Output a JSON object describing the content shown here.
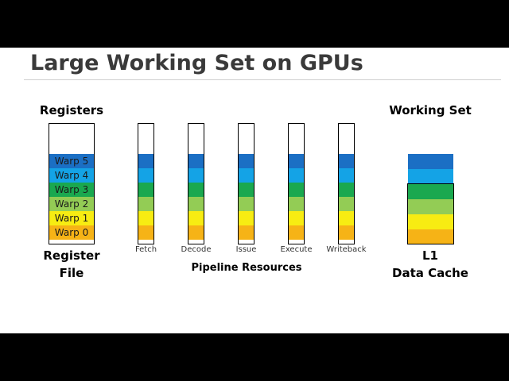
{
  "title": "Large Working Set on GPUs",
  "registers": {
    "heading": "Registers",
    "caption_line1": "Register",
    "caption_line2": "File",
    "warps": [
      "Warp 5",
      "Warp 4",
      "Warp 3",
      "Warp 2",
      "Warp 1",
      "Warp 0"
    ]
  },
  "colors": {
    "warp5": "#1b6fc4",
    "warp4": "#14a3e6",
    "warp3": "#1aa84f",
    "warp2": "#93cc55",
    "warp1": "#f7ec12",
    "warp0": "#f6b316"
  },
  "pipeline": {
    "caption": "Pipeline Resources",
    "stages": [
      "Fetch",
      "Decode",
      "Issue",
      "Execute",
      "Writeback"
    ]
  },
  "working_set": {
    "heading": "Working Set",
    "caption_line1": "L1",
    "caption_line2": "Data Cache"
  }
}
